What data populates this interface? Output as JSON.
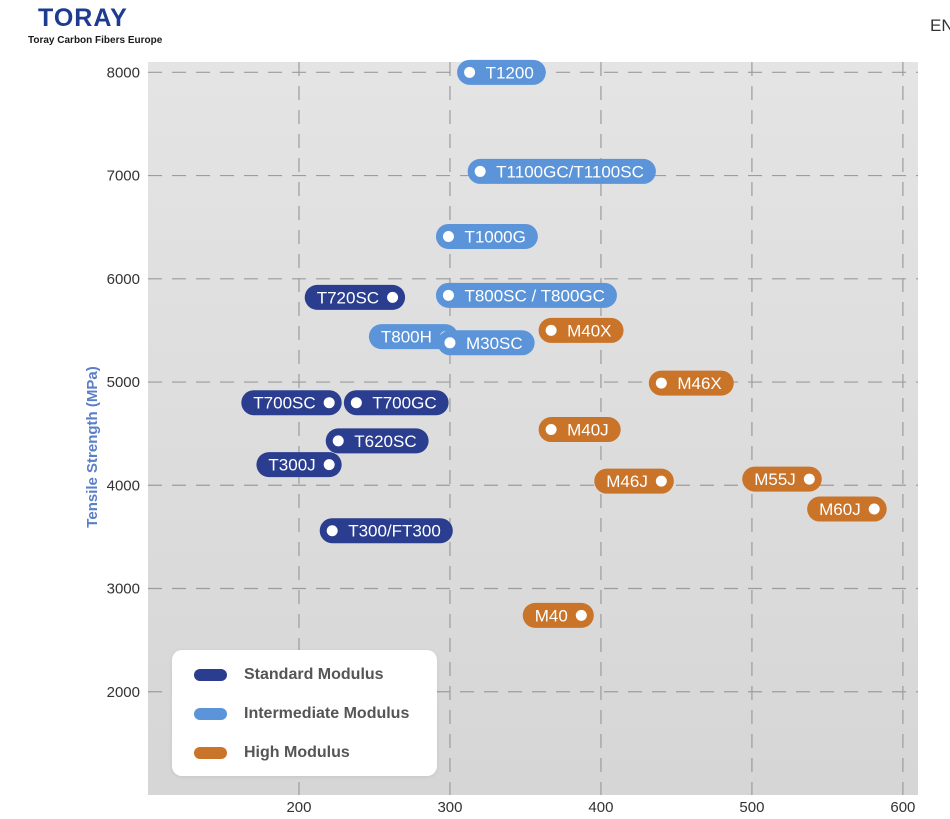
{
  "brand": {
    "logo_text": "TORAY",
    "tagline": "Toray Carbon Fibers Europe",
    "color": "#1d3c8f"
  },
  "language": "EN",
  "chart_data": {
    "type": "scatter",
    "title": "",
    "xlabel": "",
    "ylabel": "Tensile Strength (MPa)",
    "xlim": [
      100,
      610
    ],
    "ylim": [
      1000,
      8100
    ],
    "xticks": [
      200,
      300,
      400,
      500,
      600
    ],
    "yticks": [
      2000,
      3000,
      4000,
      5000,
      6000,
      7000,
      8000
    ],
    "grid": true,
    "legend_position": "bottom-left",
    "series": [
      {
        "name": "Standard Modulus",
        "color": "#2b3d8f",
        "points": [
          {
            "label": "T720SC",
            "x": 262,
            "y": 5820,
            "side": "left"
          },
          {
            "label": "T700SC",
            "x": 220,
            "y": 4800,
            "side": "left"
          },
          {
            "label": "T700GC",
            "x": 238,
            "y": 4800,
            "side": "right"
          },
          {
            "label": "T620SC",
            "x": 226,
            "y": 4430,
            "side": "right"
          },
          {
            "label": "T300J",
            "x": 220,
            "y": 4200,
            "side": "left"
          },
          {
            "label": "T300/FT300",
            "x": 222,
            "y": 3560,
            "side": "right"
          }
        ]
      },
      {
        "name": "Intermediate Modulus",
        "color": "#5b94d9",
        "points": [
          {
            "label": "T1200",
            "x": 313,
            "y": 8000,
            "side": "right"
          },
          {
            "label": "T1100GC/T1100SC",
            "x": 320,
            "y": 7040,
            "side": "right"
          },
          {
            "label": "T1000G",
            "x": 299,
            "y": 6410,
            "side": "right"
          },
          {
            "label": "T800SC / T800GC",
            "x": 299,
            "y": 5840,
            "side": "right"
          },
          {
            "label": "T800H",
            "x": 297,
            "y": 5440,
            "side": "left"
          },
          {
            "label": "M30SC",
            "x": 300,
            "y": 5380,
            "side": "right"
          }
        ]
      },
      {
        "name": "High Modulus",
        "color": "#c97428",
        "points": [
          {
            "label": "M40X",
            "x": 367,
            "y": 5500,
            "side": "right"
          },
          {
            "label": "M46X",
            "x": 440,
            "y": 4990,
            "side": "right"
          },
          {
            "label": "M40J",
            "x": 367,
            "y": 4540,
            "side": "right"
          },
          {
            "label": "M46J",
            "x": 440,
            "y": 4040,
            "side": "left"
          },
          {
            "label": "M55J",
            "x": 538,
            "y": 4060,
            "side": "left"
          },
          {
            "label": "M60J",
            "x": 581,
            "y": 3770,
            "side": "left"
          },
          {
            "label": "M40",
            "x": 387,
            "y": 2740,
            "side": "left"
          }
        ]
      }
    ]
  }
}
